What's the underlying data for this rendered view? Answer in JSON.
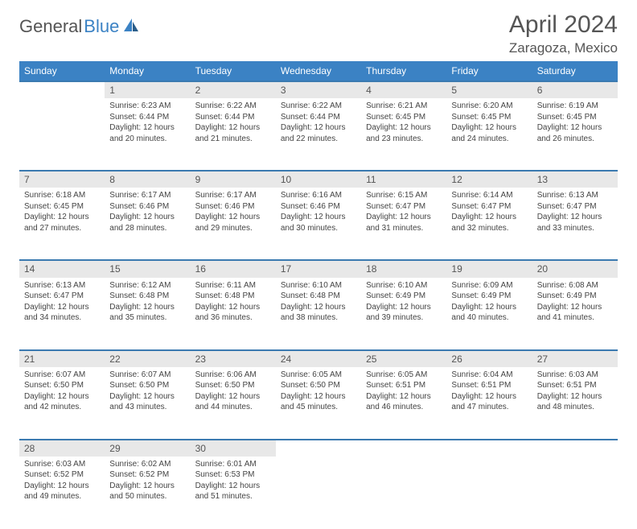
{
  "header": {
    "logo_text_1": "General",
    "logo_text_2": "Blue",
    "month_title": "April 2024",
    "location": "Zaragoza, Mexico"
  },
  "colors": {
    "header_bg": "#3b82c4",
    "row_sep": "#3b7ab0",
    "daynum_bg": "#e8e8e8",
    "text": "#444444",
    "page_bg": "#ffffff"
  },
  "typography": {
    "title_fontsize": 30,
    "location_fontsize": 17,
    "dayheader_fontsize": 12,
    "cell_fontsize": 10,
    "font_family": "Arial"
  },
  "calendar": {
    "columns": 7,
    "day_headers": [
      "Sunday",
      "Monday",
      "Tuesday",
      "Wednesday",
      "Thursday",
      "Friday",
      "Saturday"
    ],
    "weeks": [
      {
        "days": [
          null,
          {
            "num": "1",
            "sunrise": "Sunrise: 6:23 AM",
            "sunset": "Sunset: 6:44 PM",
            "day1": "Daylight: 12 hours",
            "day2": "and 20 minutes."
          },
          {
            "num": "2",
            "sunrise": "Sunrise: 6:22 AM",
            "sunset": "Sunset: 6:44 PM",
            "day1": "Daylight: 12 hours",
            "day2": "and 21 minutes."
          },
          {
            "num": "3",
            "sunrise": "Sunrise: 6:22 AM",
            "sunset": "Sunset: 6:44 PM",
            "day1": "Daylight: 12 hours",
            "day2": "and 22 minutes."
          },
          {
            "num": "4",
            "sunrise": "Sunrise: 6:21 AM",
            "sunset": "Sunset: 6:45 PM",
            "day1": "Daylight: 12 hours",
            "day2": "and 23 minutes."
          },
          {
            "num": "5",
            "sunrise": "Sunrise: 6:20 AM",
            "sunset": "Sunset: 6:45 PM",
            "day1": "Daylight: 12 hours",
            "day2": "and 24 minutes."
          },
          {
            "num": "6",
            "sunrise": "Sunrise: 6:19 AM",
            "sunset": "Sunset: 6:45 PM",
            "day1": "Daylight: 12 hours",
            "day2": "and 26 minutes."
          }
        ]
      },
      {
        "days": [
          {
            "num": "7",
            "sunrise": "Sunrise: 6:18 AM",
            "sunset": "Sunset: 6:45 PM",
            "day1": "Daylight: 12 hours",
            "day2": "and 27 minutes."
          },
          {
            "num": "8",
            "sunrise": "Sunrise: 6:17 AM",
            "sunset": "Sunset: 6:46 PM",
            "day1": "Daylight: 12 hours",
            "day2": "and 28 minutes."
          },
          {
            "num": "9",
            "sunrise": "Sunrise: 6:17 AM",
            "sunset": "Sunset: 6:46 PM",
            "day1": "Daylight: 12 hours",
            "day2": "and 29 minutes."
          },
          {
            "num": "10",
            "sunrise": "Sunrise: 6:16 AM",
            "sunset": "Sunset: 6:46 PM",
            "day1": "Daylight: 12 hours",
            "day2": "and 30 minutes."
          },
          {
            "num": "11",
            "sunrise": "Sunrise: 6:15 AM",
            "sunset": "Sunset: 6:47 PM",
            "day1": "Daylight: 12 hours",
            "day2": "and 31 minutes."
          },
          {
            "num": "12",
            "sunrise": "Sunrise: 6:14 AM",
            "sunset": "Sunset: 6:47 PM",
            "day1": "Daylight: 12 hours",
            "day2": "and 32 minutes."
          },
          {
            "num": "13",
            "sunrise": "Sunrise: 6:13 AM",
            "sunset": "Sunset: 6:47 PM",
            "day1": "Daylight: 12 hours",
            "day2": "and 33 minutes."
          }
        ]
      },
      {
        "days": [
          {
            "num": "14",
            "sunrise": "Sunrise: 6:13 AM",
            "sunset": "Sunset: 6:47 PM",
            "day1": "Daylight: 12 hours",
            "day2": "and 34 minutes."
          },
          {
            "num": "15",
            "sunrise": "Sunrise: 6:12 AM",
            "sunset": "Sunset: 6:48 PM",
            "day1": "Daylight: 12 hours",
            "day2": "and 35 minutes."
          },
          {
            "num": "16",
            "sunrise": "Sunrise: 6:11 AM",
            "sunset": "Sunset: 6:48 PM",
            "day1": "Daylight: 12 hours",
            "day2": "and 36 minutes."
          },
          {
            "num": "17",
            "sunrise": "Sunrise: 6:10 AM",
            "sunset": "Sunset: 6:48 PM",
            "day1": "Daylight: 12 hours",
            "day2": "and 38 minutes."
          },
          {
            "num": "18",
            "sunrise": "Sunrise: 6:10 AM",
            "sunset": "Sunset: 6:49 PM",
            "day1": "Daylight: 12 hours",
            "day2": "and 39 minutes."
          },
          {
            "num": "19",
            "sunrise": "Sunrise: 6:09 AM",
            "sunset": "Sunset: 6:49 PM",
            "day1": "Daylight: 12 hours",
            "day2": "and 40 minutes."
          },
          {
            "num": "20",
            "sunrise": "Sunrise: 6:08 AM",
            "sunset": "Sunset: 6:49 PM",
            "day1": "Daylight: 12 hours",
            "day2": "and 41 minutes."
          }
        ]
      },
      {
        "days": [
          {
            "num": "21",
            "sunrise": "Sunrise: 6:07 AM",
            "sunset": "Sunset: 6:50 PM",
            "day1": "Daylight: 12 hours",
            "day2": "and 42 minutes."
          },
          {
            "num": "22",
            "sunrise": "Sunrise: 6:07 AM",
            "sunset": "Sunset: 6:50 PM",
            "day1": "Daylight: 12 hours",
            "day2": "and 43 minutes."
          },
          {
            "num": "23",
            "sunrise": "Sunrise: 6:06 AM",
            "sunset": "Sunset: 6:50 PM",
            "day1": "Daylight: 12 hours",
            "day2": "and 44 minutes."
          },
          {
            "num": "24",
            "sunrise": "Sunrise: 6:05 AM",
            "sunset": "Sunset: 6:50 PM",
            "day1": "Daylight: 12 hours",
            "day2": "and 45 minutes."
          },
          {
            "num": "25",
            "sunrise": "Sunrise: 6:05 AM",
            "sunset": "Sunset: 6:51 PM",
            "day1": "Daylight: 12 hours",
            "day2": "and 46 minutes."
          },
          {
            "num": "26",
            "sunrise": "Sunrise: 6:04 AM",
            "sunset": "Sunset: 6:51 PM",
            "day1": "Daylight: 12 hours",
            "day2": "and 47 minutes."
          },
          {
            "num": "27",
            "sunrise": "Sunrise: 6:03 AM",
            "sunset": "Sunset: 6:51 PM",
            "day1": "Daylight: 12 hours",
            "day2": "and 48 minutes."
          }
        ]
      },
      {
        "days": [
          {
            "num": "28",
            "sunrise": "Sunrise: 6:03 AM",
            "sunset": "Sunset: 6:52 PM",
            "day1": "Daylight: 12 hours",
            "day2": "and 49 minutes."
          },
          {
            "num": "29",
            "sunrise": "Sunrise: 6:02 AM",
            "sunset": "Sunset: 6:52 PM",
            "day1": "Daylight: 12 hours",
            "day2": "and 50 minutes."
          },
          {
            "num": "30",
            "sunrise": "Sunrise: 6:01 AM",
            "sunset": "Sunset: 6:53 PM",
            "day1": "Daylight: 12 hours",
            "day2": "and 51 minutes."
          },
          null,
          null,
          null,
          null
        ]
      }
    ]
  }
}
